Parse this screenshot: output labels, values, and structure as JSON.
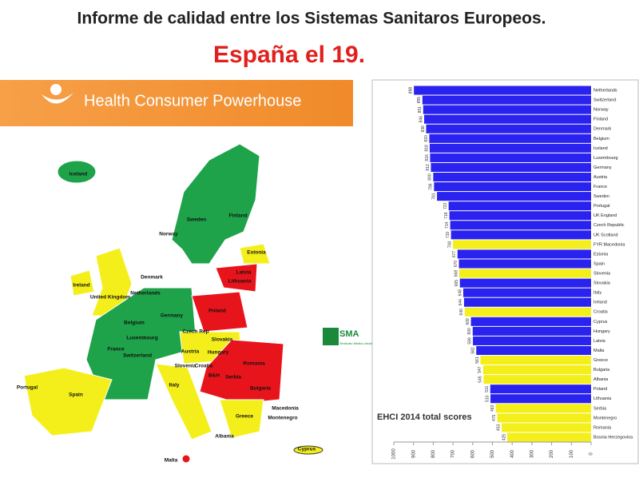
{
  "title": "Informe de calidad entre los Sistemas Sanitaros Europeos.",
  "subtitle": "España el 19.",
  "logo": "Health Consumer Powerhouse",
  "badge": {
    "name": "SMA",
    "text": "Sindicato Medico Andaluz"
  },
  "map": {
    "labels": [
      "Iceland",
      "Norway",
      "Sweden",
      "Finland",
      "Estonia",
      "Latvia",
      "Lithuania",
      "Denmark",
      "Ireland",
      "United Kingdom",
      "Netherlands",
      "Belgium",
      "Luxembourg",
      "Germany",
      "Poland",
      "France",
      "Switzerland",
      "Czech Rep",
      "Slovakia",
      "Austria",
      "Hungary",
      "Romania",
      "Slovenia",
      "Croatia",
      "B&H",
      "Serbia",
      "Bulgaria",
      "Italy",
      "Portugal",
      "Spain",
      "Macedonia",
      "Montenegro",
      "Greece",
      "Albania",
      "Malta",
      "Cyprus"
    ]
  },
  "chart_data": {
    "type": "bar",
    "orientation": "horizontal",
    "x_reversed": true,
    "annotation": "EHCI 2014 total scores",
    "categories": [
      "Netherlands",
      "Switzerland",
      "Norway",
      "Finland",
      "Denmark",
      "Belgium",
      "Iceland",
      "Luxembourg",
      "Germany",
      "Austria",
      "France",
      "Sweden",
      "Portugal",
      "UK England",
      "Czech Republic",
      "UK Scotland",
      "FYR Macedonia",
      "Estonia",
      "Spain",
      "Slovenia",
      "Slovakia",
      "Italy",
      "Ireland",
      "Croatia",
      "Cyprus",
      "Hungary",
      "Latvia",
      "Malta",
      "Greece",
      "Bulgaria",
      "Albania",
      "Poland",
      "Lithuania",
      "Serbia",
      "Montenegro",
      "Romania",
      "Bosnia Herzegovina"
    ],
    "values": [
      898,
      855,
      851,
      846,
      836,
      820,
      818,
      816,
      812,
      800,
      796,
      781,
      722,
      718,
      714,
      710,
      700,
      677,
      670,
      668,
      665,
      648,
      644,
      640,
      609,
      600,
      599,
      582,
      561,
      547,
      545,
      511,
      510,
      483,
      475,
      453,
      425
    ],
    "colors": [
      "#2a22ee",
      "#2a22ee",
      "#2a22ee",
      "#2a22ee",
      "#2a22ee",
      "#2a22ee",
      "#2a22ee",
      "#2a22ee",
      "#2a22ee",
      "#2a22ee",
      "#2a22ee",
      "#2a22ee",
      "#2a22ee",
      "#2a22ee",
      "#2a22ee",
      "#2a22ee",
      "#f4ef1a",
      "#2a22ee",
      "#2a22ee",
      "#f4ef1a",
      "#2a22ee",
      "#2a22ee",
      "#2a22ee",
      "#f4ef1a",
      "#2a22ee",
      "#2a22ee",
      "#2a22ee",
      "#2a22ee",
      "#f4ef1a",
      "#f4ef1a",
      "#f4ef1a",
      "#2a22ee",
      "#2a22ee",
      "#f4ef1a",
      "#f4ef1a",
      "#f4ef1a",
      "#f4ef1a"
    ],
    "xlim": [
      0,
      1000
    ],
    "xticks": [
      1000,
      900,
      800,
      700,
      600,
      500,
      400,
      300,
      200,
      100,
      0
    ]
  }
}
